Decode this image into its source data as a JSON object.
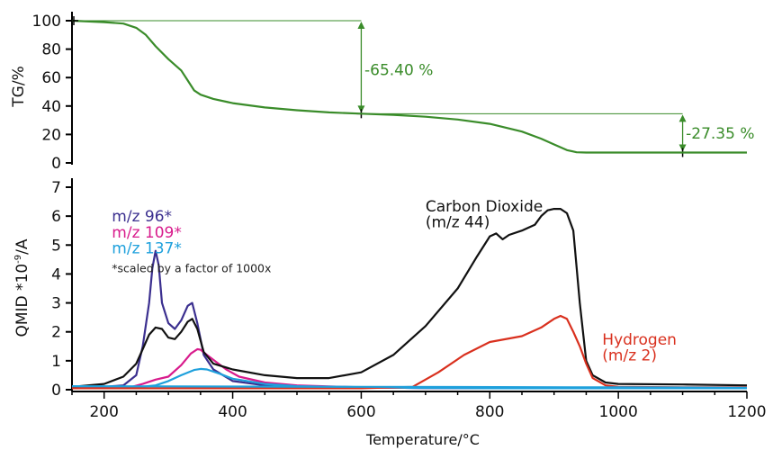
{
  "chart_data": [
    {
      "type": "line",
      "ylabel": "TG/%",
      "xlim": [
        150,
        1200
      ],
      "ylim": [
        0,
        100
      ],
      "y_ticks": [
        0,
        20,
        40,
        60,
        80,
        100
      ],
      "grid": false,
      "series": [
        {
          "name": "TG",
          "color": "#3a8c2a",
          "x": [
            150,
            200,
            230,
            250,
            265,
            280,
            300,
            320,
            330,
            340,
            350,
            370,
            400,
            450,
            500,
            550,
            600,
            650,
            700,
            750,
            800,
            850,
            880,
            900,
            920,
            935,
            950,
            1000,
            1100,
            1200
          ],
          "y": [
            100,
            99,
            98,
            95,
            90,
            82,
            73,
            65,
            58,
            51,
            48,
            45,
            42,
            39,
            37,
            35.5,
            34.6,
            33.8,
            32.5,
            30.5,
            27.5,
            22,
            17,
            13,
            9,
            7.5,
            7.3,
            7.3,
            7.3,
            7.3
          ]
        }
      ],
      "annotations": [
        {
          "text": "-65.40 %",
          "x": 605,
          "y": 65.4,
          "color": "#3a8c2a"
        },
        {
          "text": "-27.35 %",
          "x": 1105,
          "y": 21,
          "color": "#3a8c2a"
        }
      ],
      "reference_lines": [
        {
          "from": [
            150,
            100
          ],
          "to": [
            600,
            100
          ]
        },
        {
          "from": [
            600,
            34.6
          ],
          "to": [
            1100,
            34.6
          ]
        }
      ],
      "arrows": [
        {
          "x": 600,
          "y_from": 100,
          "y_to": 34.6
        },
        {
          "x": 1100,
          "y_from": 34.6,
          "y_to": 7.3
        }
      ]
    },
    {
      "type": "line",
      "xlabel": "Temperature/°C",
      "ylabel": "QMID *10-9/A",
      "xlim": [
        150,
        1200
      ],
      "ylim": [
        0,
        7
      ],
      "x_ticks": [
        200,
        400,
        600,
        800,
        1000,
        1200
      ],
      "y_ticks": [
        0,
        1,
        2,
        3,
        4,
        5,
        6,
        7
      ],
      "grid": false,
      "series": [
        {
          "name": "m/z 96*",
          "color": "#3b2f8f",
          "x": [
            150,
            200,
            230,
            250,
            260,
            270,
            275,
            280,
            285,
            290,
            300,
            310,
            320,
            330,
            337,
            345,
            355,
            370,
            400,
            450,
            500,
            600,
            700,
            800,
            900,
            1000,
            1100,
            1200
          ],
          "y": [
            0.1,
            0.1,
            0.15,
            0.5,
            1.5,
            3.0,
            4.2,
            4.8,
            4.3,
            3.0,
            2.3,
            2.1,
            2.4,
            2.9,
            3.0,
            2.3,
            1.2,
            0.7,
            0.3,
            0.15,
            0.1,
            0.08,
            0.06,
            0.05,
            0.05,
            0.05,
            0.05,
            0.05
          ]
        },
        {
          "name": "m/z 109*",
          "color": "#d81b8c",
          "x": [
            150,
            200,
            240,
            260,
            280,
            300,
            320,
            335,
            345,
            350,
            360,
            375,
            390,
            410,
            450,
            500,
            600,
            700,
            800,
            1000,
            1200
          ],
          "y": [
            0.05,
            0.05,
            0.08,
            0.2,
            0.35,
            0.45,
            0.85,
            1.25,
            1.4,
            1.38,
            1.2,
            0.95,
            0.7,
            0.45,
            0.25,
            0.15,
            0.08,
            0.06,
            0.05,
            0.05,
            0.05
          ]
        },
        {
          "name": "m/z 137*",
          "color": "#1ea0dc",
          "x": [
            150,
            200,
            250,
            280,
            300,
            320,
            340,
            350,
            360,
            380,
            400,
            450,
            500,
            600,
            700,
            800,
            1000,
            1200
          ],
          "y": [
            0.05,
            0.05,
            0.08,
            0.15,
            0.3,
            0.5,
            0.68,
            0.72,
            0.7,
            0.55,
            0.38,
            0.2,
            0.12,
            0.08,
            0.06,
            0.05,
            0.05,
            0.05
          ]
        },
        {
          "name": "Carbon Dioxide (m/z 44)",
          "color": "#111111",
          "x": [
            150,
            200,
            230,
            250,
            260,
            270,
            280,
            290,
            300,
            310,
            320,
            330,
            337,
            345,
            355,
            370,
            400,
            450,
            500,
            550,
            600,
            650,
            700,
            750,
            780,
            800,
            810,
            820,
            830,
            850,
            870,
            880,
            890,
            900,
            910,
            920,
            930,
            940,
            950,
            960,
            980,
            1000,
            1100,
            1200
          ],
          "y": [
            0.1,
            0.2,
            0.45,
            0.9,
            1.4,
            1.9,
            2.15,
            2.1,
            1.8,
            1.75,
            2.0,
            2.35,
            2.45,
            2.1,
            1.3,
            0.9,
            0.7,
            0.5,
            0.4,
            0.4,
            0.6,
            1.2,
            2.2,
            3.5,
            4.6,
            5.3,
            5.4,
            5.2,
            5.35,
            5.5,
            5.7,
            6.0,
            6.2,
            6.25,
            6.25,
            6.1,
            5.5,
            3.0,
            1.0,
            0.5,
            0.25,
            0.2,
            0.18,
            0.15
          ]
        },
        {
          "name": "Hydrogen (m/z 2)",
          "color": "#d9301e",
          "x": [
            150,
            400,
            600,
            680,
            720,
            760,
            800,
            850,
            880,
            900,
            910,
            920,
            930,
            940,
            950,
            960,
            980,
            1000,
            1100,
            1200
          ],
          "y": [
            0.05,
            0.05,
            0.05,
            0.1,
            0.6,
            1.2,
            1.65,
            1.85,
            2.15,
            2.45,
            2.55,
            2.45,
            2.0,
            1.5,
            0.9,
            0.4,
            0.15,
            0.1,
            0.08,
            0.08
          ]
        },
        {
          "name": "baseline",
          "color": "#1ea0dc",
          "x": [
            150,
            600,
            1000,
            1200
          ],
          "y": [
            0.12,
            0.1,
            0.08,
            0.07
          ]
        }
      ],
      "labels": [
        {
          "text": "m/z 96*",
          "color": "#3b2f8f",
          "x": 212,
          "y": 6.0
        },
        {
          "text": "m/z 109*",
          "color": "#d81b8c",
          "x": 212,
          "y": 5.45
        },
        {
          "text": "m/z 137*",
          "color": "#1ea0dc",
          "x": 212,
          "y": 4.9
        },
        {
          "text": "*scaled by a factor of 1000x",
          "color": "#222222",
          "x": 212,
          "y": 4.25
        },
        {
          "text": "Carbon Dioxide",
          "color": "#111111",
          "x": 700,
          "y": 6.35
        },
        {
          "text": "(m/z 44)",
          "color": "#111111",
          "x": 700,
          "y": 5.8
        },
        {
          "text": "Hydrogen",
          "color": "#d9301e",
          "x": 975,
          "y": 1.75
        },
        {
          "text": "(m/z 2)",
          "color": "#d9301e",
          "x": 975,
          "y": 1.2
        }
      ]
    }
  ]
}
